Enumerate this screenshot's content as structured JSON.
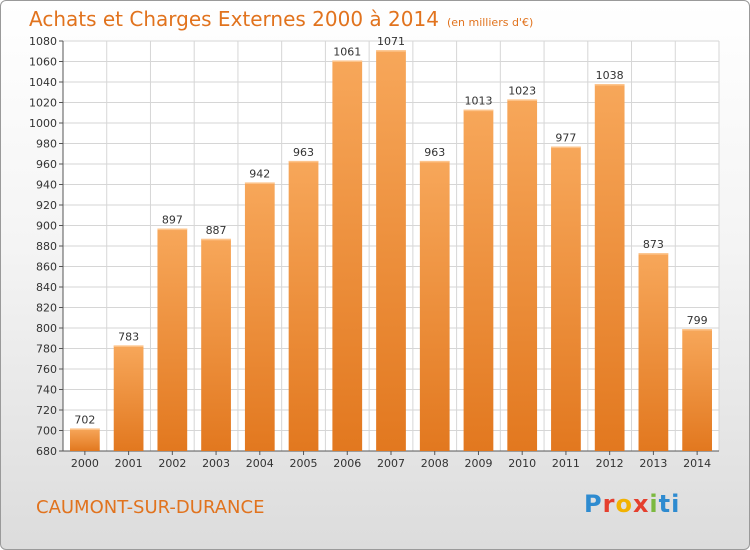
{
  "header": {
    "title": "Achats et Charges Externes 2000 à 2014",
    "subtitle": "(en milliers d'€)"
  },
  "footer": {
    "place": "CAUMONT-SUR-DURANCE",
    "logo": "Proxiti"
  },
  "colors": {
    "bar_light": "#f7a75a",
    "bar_dark": "#e2781f",
    "grid": "#d6d6d6",
    "title": "#e1731e"
  },
  "chart_data": {
    "type": "bar",
    "title": "Achats et Charges Externes 2000 à 2014",
    "subtitle": "(en milliers d'€)",
    "xlabel": "",
    "ylabel": "",
    "categories": [
      "2000",
      "2001",
      "2002",
      "2003",
      "2004",
      "2005",
      "2006",
      "2007",
      "2008",
      "2009",
      "2010",
      "2011",
      "2012",
      "2013",
      "2014"
    ],
    "values": [
      702,
      783,
      897,
      887,
      942,
      963,
      1061,
      1071,
      963,
      1013,
      1023,
      977,
      1038,
      873,
      799
    ],
    "ylim": [
      680,
      1080
    ],
    "ytick_step": 20,
    "grid": true,
    "legend": "none"
  }
}
